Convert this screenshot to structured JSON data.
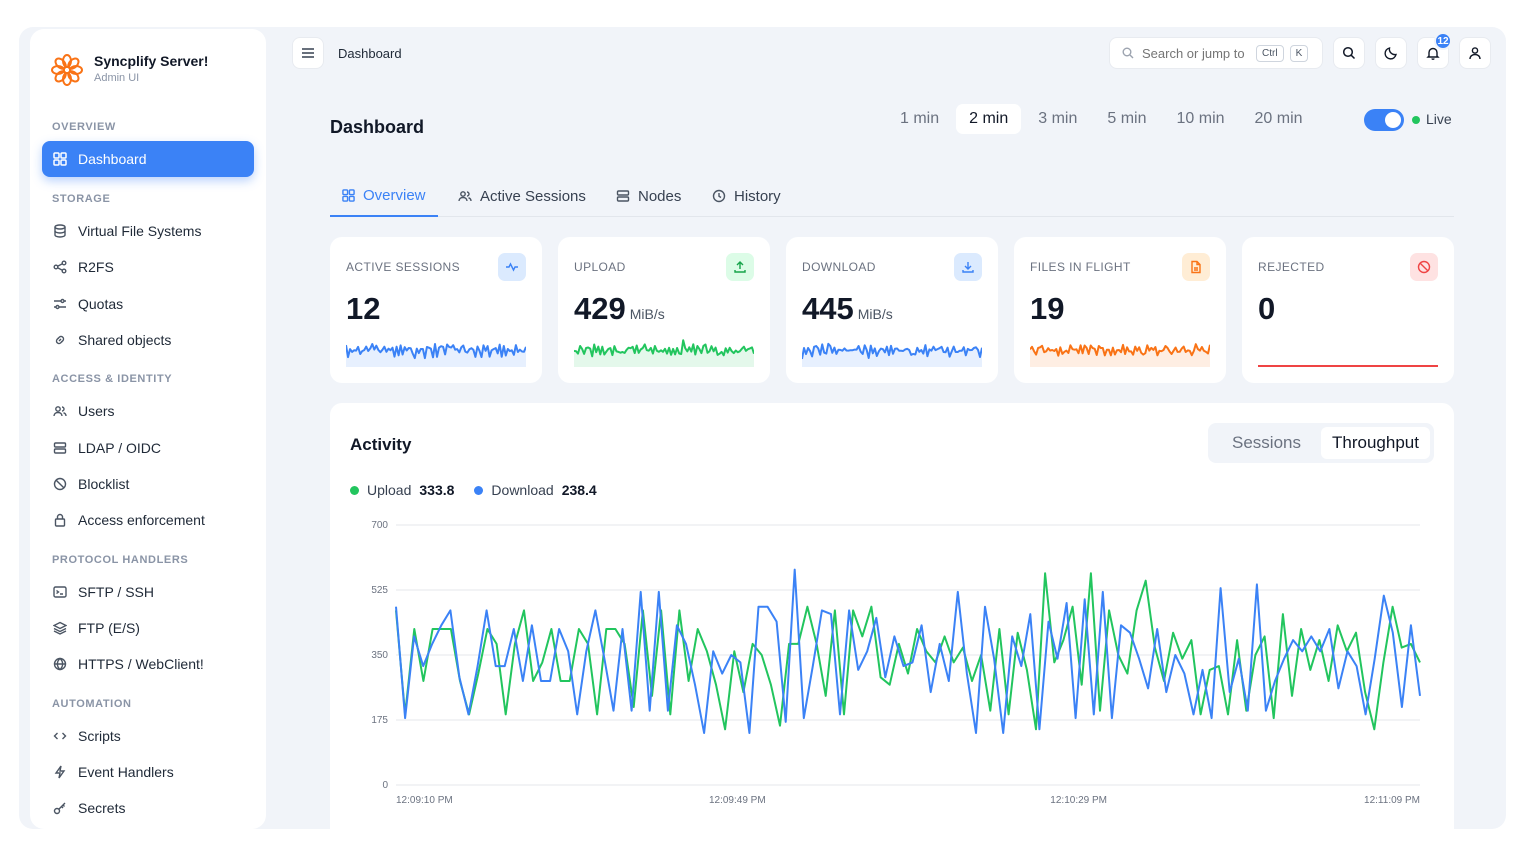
{
  "brand": {
    "title": "Syncplify Server!",
    "subtitle": "Admin UI",
    "accent": "#f97316"
  },
  "sidebar": {
    "sections": [
      {
        "label": "OVERVIEW"
      },
      {
        "label": "STORAGE"
      },
      {
        "label": "ACCESS & IDENTITY"
      },
      {
        "label": "PROTOCOL HANDLERS"
      },
      {
        "label": "AUTOMATION"
      }
    ],
    "items": [
      {
        "label": "Dashboard",
        "icon": "grid-icon",
        "active": true
      },
      {
        "label": "Virtual File Systems",
        "icon": "database-icon"
      },
      {
        "label": "R2FS",
        "icon": "share-icon"
      },
      {
        "label": "Quotas",
        "icon": "sliders-icon"
      },
      {
        "label": "Shared objects",
        "icon": "link-icon"
      },
      {
        "label": "Users",
        "icon": "users-icon"
      },
      {
        "label": "LDAP / OIDC",
        "icon": "server-icon"
      },
      {
        "label": "Blocklist",
        "icon": "ban-icon"
      },
      {
        "label": "Access enforcement",
        "icon": "lock-icon"
      },
      {
        "label": "SFTP / SSH",
        "icon": "terminal-icon"
      },
      {
        "label": "FTP (E/S)",
        "icon": "layers-icon"
      },
      {
        "label": "HTTPS / WebClient!",
        "icon": "globe-icon"
      },
      {
        "label": "Scripts",
        "icon": "code-icon"
      },
      {
        "label": "Event Handlers",
        "icon": "bolt-icon"
      },
      {
        "label": "Secrets",
        "icon": "key-icon"
      }
    ]
  },
  "topbar": {
    "breadcrumb": "Dashboard",
    "search_placeholder": "Search or jump to",
    "kbd_ctrl": "Ctrl",
    "kbd_k": "K",
    "notification_count": "12"
  },
  "main": {
    "title": "Dashboard",
    "ranges": [
      "1 min",
      "2 min",
      "3 min",
      "5 min",
      "10 min",
      "20 min"
    ],
    "active_range": "2 min",
    "live_label": "Live",
    "live_on": true,
    "tabs": [
      {
        "label": "Overview",
        "icon": "grid-icon",
        "active": true
      },
      {
        "label": "Active Sessions",
        "icon": "users-icon"
      },
      {
        "label": "Nodes",
        "icon": "server-icon"
      },
      {
        "label": "History",
        "icon": "clock-icon"
      }
    ],
    "cards": [
      {
        "label": "ACTIVE SESSIONS",
        "value": "12",
        "unit": "",
        "color": "#3b82f6",
        "icon": "activity-icon"
      },
      {
        "label": "UPLOAD",
        "value": "429",
        "unit": "MiB/s",
        "color": "#22c55e",
        "icon": "upload-icon"
      },
      {
        "label": "DOWNLOAD",
        "value": "445",
        "unit": "MiB/s",
        "color": "#3b82f6",
        "icon": "download-icon"
      },
      {
        "label": "FILES IN FLIGHT",
        "value": "19",
        "unit": "",
        "color": "#f97316",
        "icon": "file-icon"
      },
      {
        "label": "REJECTED",
        "value": "0",
        "unit": "",
        "color": "#ef4444",
        "icon": "ban-icon"
      }
    ]
  },
  "activity": {
    "title": "Activity",
    "segments": [
      "Sessions",
      "Throughput"
    ],
    "active_segment": "Throughput",
    "legend": [
      {
        "name": "Upload",
        "value": "333.8",
        "color": "#22c55e"
      },
      {
        "name": "Download",
        "value": "238.4",
        "color": "#3b82f6"
      }
    ]
  },
  "chart_data": {
    "type": "line",
    "y_ticks": [
      "700",
      "525",
      "350",
      "175",
      "0"
    ],
    "ylim": [
      0,
      700
    ],
    "x_tick_labels": [
      "12:09:10 PM",
      "12:09:49 PM",
      "12:10:29 PM",
      "12:11:09 PM"
    ],
    "grid": true,
    "series": [
      {
        "name": "Upload",
        "color": "#22c55e",
        "values": [
          470,
          190,
          420,
          280,
          420,
          420,
          420,
          280,
          190,
          300,
          420,
          380,
          190,
          380,
          470,
          280,
          330,
          420,
          280,
          280,
          420,
          380,
          190,
          420,
          420,
          380,
          210,
          470,
          240,
          470,
          190,
          470,
          280,
          420,
          360,
          270,
          150,
          360,
          250,
          380,
          350,
          270,
          160,
          380,
          380,
          480,
          380,
          240,
          470,
          190,
          470,
          400,
          480,
          290,
          270,
          380,
          300,
          420,
          360,
          330,
          400,
          330,
          370,
          280,
          350,
          200,
          420,
          190,
          410,
          310,
          150,
          570,
          330,
          390,
          480,
          270,
          570,
          200,
          470,
          350,
          300,
          470,
          550,
          370,
          280,
          410,
          340,
          390,
          190,
          310,
          320,
          190,
          390,
          200,
          350,
          400,
          180,
          460,
          240,
          420,
          310,
          390,
          280,
          430,
          360,
          410,
          250,
          150,
          330,
          480,
          370,
          380,
          330
        ],
        "approximate": true
      },
      {
        "name": "Download",
        "color": "#3b82f6",
        "values": [
          480,
          180,
          400,
          320,
          380,
          430,
          470,
          290,
          190,
          320,
          470,
          320,
          320,
          420,
          280,
          430,
          280,
          280,
          420,
          360,
          190,
          360,
          470,
          340,
          200,
          420,
          200,
          520,
          200,
          520,
          200,
          430,
          380,
          270,
          140,
          360,
          300,
          350,
          330,
          140,
          480,
          480,
          440,
          170,
          580,
          180,
          320,
          470,
          460,
          190,
          470,
          310,
          360,
          450,
          290,
          400,
          320,
          330,
          430,
          250,
          380,
          280,
          520,
          300,
          140,
          480,
          340,
          140,
          400,
          320,
          460,
          150,
          440,
          340,
          490,
          180,
          500,
          190,
          520,
          180,
          430,
          410,
          340,
          260,
          420,
          250,
          350,
          300,
          190,
          310,
          180,
          530,
          250,
          340,
          200,
          540,
          200,
          280,
          340,
          390,
          360,
          400,
          360,
          420,
          260,
          360,
          320,
          190,
          340,
          510,
          410,
          210,
          430,
          240
        ],
        "approximate": true
      }
    ]
  }
}
